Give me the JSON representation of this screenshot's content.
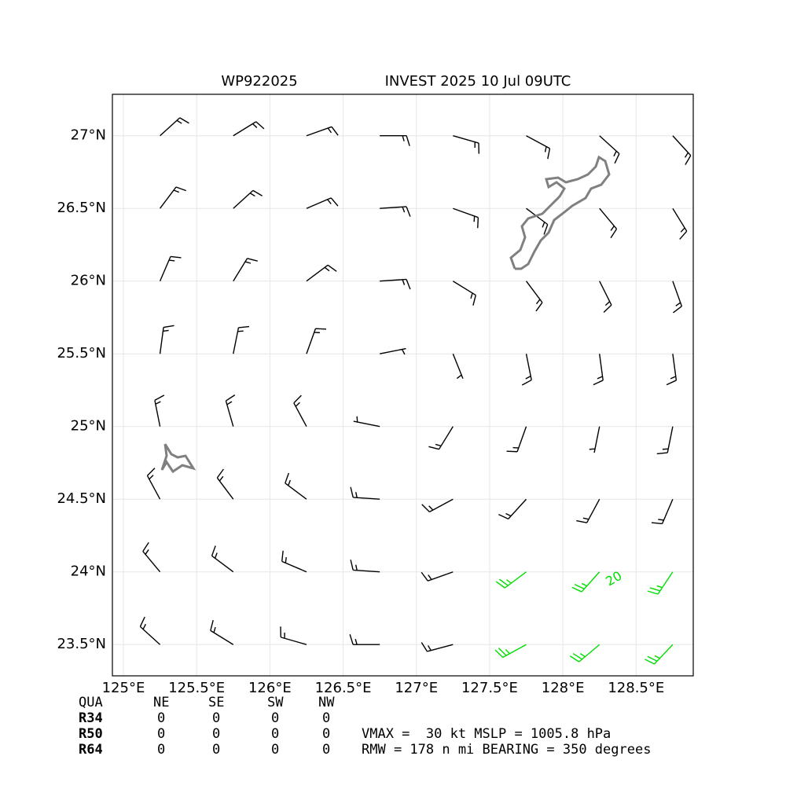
{
  "chart_data": {
    "type": "barbs",
    "title_left": "WP922025",
    "title_right": "INVEST 2025 10 Jul 09UTC",
    "xlim": [
      124.925,
      128.89
    ],
    "ylim": [
      23.285,
      27.285
    ],
    "xticks": [
      {
        "value": 125,
        "label": "125°E"
      },
      {
        "value": 125.5,
        "label": "125.5°E"
      },
      {
        "value": 126,
        "label": "126°E"
      },
      {
        "value": 126.5,
        "label": "126.5°E"
      },
      {
        "value": 127,
        "label": "127°E"
      },
      {
        "value": 127.5,
        "label": "127.5°E"
      },
      {
        "value": 128,
        "label": "128°E"
      },
      {
        "value": 128.5,
        "label": "128.5°E"
      }
    ],
    "yticks": [
      {
        "value": 23.5,
        "label": "23.5°N"
      },
      {
        "value": 24,
        "label": "24°N"
      },
      {
        "value": 24.5,
        "label": "24.5°N"
      },
      {
        "value": 25,
        "label": "25°N"
      },
      {
        "value": 25.5,
        "label": "25.5°N"
      },
      {
        "value": 26,
        "label": "26°N"
      },
      {
        "value": 26.5,
        "label": "26.5°N"
      },
      {
        "value": 27,
        "label": "27°N"
      }
    ],
    "grid": true,
    "barb_color": "#000000",
    "strong_color": "#00dd00",
    "contour_label": 20,
    "contour_label_lon": 128.35,
    "contour_label_lat": 23.95,
    "barbs": {
      "lon": [
        125.25,
        125.75,
        126.25,
        126.75,
        127.25,
        127.75,
        128.25,
        128.75,
        125.25,
        125.75,
        126.25,
        126.75,
        127.25,
        127.75,
        128.25,
        128.75,
        125.25,
        125.75,
        126.25,
        126.75,
        127.25,
        127.75,
        128.25,
        128.75,
        125.25,
        125.75,
        126.25,
        126.75,
        127.25,
        127.75,
        128.25,
        128.75,
        125.25,
        125.75,
        126.25,
        126.75,
        127.25,
        127.75,
        128.25,
        128.75,
        125.25,
        125.75,
        126.25,
        126.75,
        127.25,
        127.75,
        128.25,
        128.75,
        125.25,
        125.75,
        126.25,
        126.75,
        127.25,
        127.75,
        128.25,
        128.75,
        125.25,
        125.75,
        126.25,
        126.75,
        127.25,
        127.75,
        128.25,
        128.75
      ],
      "lat": [
        27,
        27,
        27,
        27,
        27,
        27,
        27,
        27,
        26.5,
        26.5,
        26.5,
        26.5,
        26.5,
        26.5,
        26.5,
        26.5,
        26,
        26,
        26,
        26,
        26,
        26,
        26,
        26,
        25.5,
        25.5,
        25.5,
        25.5,
        25.5,
        25.5,
        25.5,
        25.5,
        25,
        25,
        25,
        25,
        25,
        25,
        25,
        25,
        24.5,
        24.5,
        24.5,
        24.5,
        24.5,
        24.5,
        24.5,
        24.5,
        24,
        24,
        24,
        24,
        24,
        24,
        24,
        24,
        23.5,
        23.5,
        23.5,
        23.5,
        23.5,
        23.5,
        23.5,
        23.5
      ],
      "u": [
        -11,
        -13,
        -14,
        -15,
        -14,
        -13,
        -11,
        -10,
        -9,
        -11,
        -14,
        -15,
        -14,
        -12,
        -10,
        -8,
        -6,
        -8,
        -12,
        -15,
        -13,
        -9,
        -7,
        -5,
        -2,
        -3,
        -5,
        -5,
        -2,
        -3,
        -2,
        -2,
        3,
        4,
        7,
        5,
        8,
        5,
        1,
        3,
        7,
        9,
        12,
        15,
        13,
        10,
        7,
        6,
        10,
        12,
        14,
        15,
        14,
        20,
        17,
        14,
        11,
        13,
        14,
        15,
        15,
        22,
        19,
        17
      ],
      "v": [
        -10,
        -8,
        -5,
        0,
        4,
        7,
        10,
        11,
        -12,
        -10,
        -6,
        -1,
        5,
        9,
        12,
        13,
        -14,
        -13,
        -9,
        -1,
        8,
        12,
        14,
        14,
        -15,
        -15,
        -14,
        -1,
        5,
        15,
        15,
        15,
        -15,
        -14,
        -13,
        -1,
        13,
        14,
        5,
        15,
        -13,
        -12,
        -9,
        -1,
        7,
        11,
        13,
        14,
        -12,
        -9,
        -6,
        -1,
        5,
        15,
        19,
        21,
        -10,
        -8,
        -4,
        0,
        4,
        12,
        16,
        18
      ]
    },
    "wind_radii": {
      "header": [
        "QUA",
        "NE",
        "SE",
        "SW",
        "NW"
      ],
      "rows": [
        [
          "R34",
          0,
          0,
          0,
          0
        ],
        [
          "R50",
          0,
          0,
          0,
          0
        ],
        [
          "R64",
          0,
          0,
          0,
          0
        ]
      ]
    },
    "info_line_1": "VMAX =  30 kt MSLP = 1005.8 hPa",
    "info_line_2": "RMW = 178 n mi BEARING = 350 degrees"
  }
}
